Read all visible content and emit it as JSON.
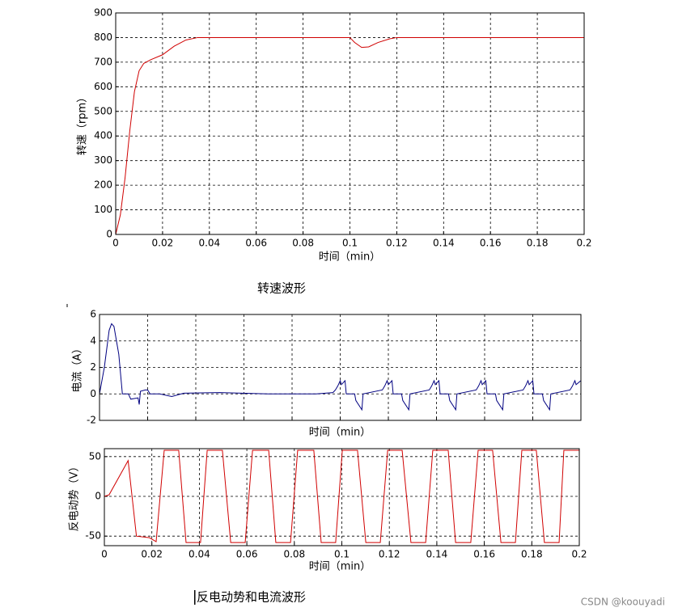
{
  "chart_data": [
    {
      "type": "line",
      "xlabel": "时间（min）",
      "ylabel": "转速（rpm）",
      "color": "#d00000",
      "grid": true,
      "xtick_labels": true,
      "xlim": [
        0,
        0.2
      ],
      "ylim": [
        0,
        900
      ],
      "xticks": [
        0,
        0.02,
        0.04,
        0.06,
        0.08,
        0.1,
        0.12,
        0.14,
        0.16,
        0.18,
        0.2
      ],
      "yticks": [
        0,
        100,
        200,
        300,
        400,
        500,
        600,
        700,
        800,
        900
      ],
      "x": [
        0,
        0.002,
        0.004,
        0.006,
        0.008,
        0.01,
        0.012,
        0.015,
        0.02,
        0.025,
        0.03,
        0.035,
        0.04,
        0.1,
        0.102,
        0.105,
        0.108,
        0.112,
        0.117,
        0.12,
        0.2
      ],
      "values": [
        0,
        80,
        230,
        420,
        580,
        665,
        695,
        710,
        730,
        765,
        790,
        800,
        800,
        800,
        780,
        760,
        762,
        780,
        795,
        800,
        800
      ]
    },
    {
      "type": "line",
      "xlabel": "时间（min）",
      "ylabel": "电流（A）",
      "color": "#000080",
      "grid": true,
      "xtick_labels": false,
      "xlim": [
        0,
        0.2
      ],
      "ylim": [
        -2,
        6
      ],
      "xticks": [
        0,
        0.02,
        0.04,
        0.06,
        0.08,
        0.1,
        0.12,
        0.14,
        0.16,
        0.18,
        0.2
      ],
      "yticks": [
        -2,
        0,
        2,
        4,
        6
      ],
      "x": [
        0,
        0.002,
        0.004,
        0.005,
        0.006,
        0.008,
        0.0095,
        0.012,
        0.013,
        0.016,
        0.0165,
        0.017,
        0.019,
        0.02,
        0.021,
        0.025,
        0.03,
        0.035,
        0.05,
        0.07,
        0.09,
        0.097,
        0.098,
        0.099,
        0.1,
        0.1005,
        0.102,
        0.1025,
        0.106,
        0.1065,
        0.109,
        0.1095,
        0.1175,
        0.1185,
        0.1195,
        0.12,
        0.1215,
        0.122,
        0.1255,
        0.126,
        0.1285,
        0.129,
        0.137,
        0.138,
        0.139,
        0.1395,
        0.141,
        0.1415,
        0.145,
        0.1455,
        0.148,
        0.1485,
        0.1565,
        0.1575,
        0.1585,
        0.159,
        0.1605,
        0.161,
        0.1645,
        0.165,
        0.1675,
        0.168,
        0.176,
        0.177,
        0.178,
        0.1785,
        0.18,
        0.1805,
        0.184,
        0.1845,
        0.187,
        0.1875,
        0.1955,
        0.1965,
        0.1975,
        0.198,
        0.2
      ],
      "values": [
        0,
        2,
        4.8,
        5.3,
        5.1,
        3,
        0,
        0,
        -0.4,
        -0.3,
        -0.8,
        0.2,
        0.3,
        0.3,
        0,
        0,
        -0.2,
        0.05,
        0.1,
        0,
        0,
        0.1,
        0.3,
        0.6,
        1.0,
        0.7,
        1.0,
        0,
        0,
        -0.5,
        -1.2,
        0,
        0.3,
        0.6,
        1.0,
        0.7,
        1.0,
        0,
        0,
        -0.5,
        -1.2,
        0,
        0.3,
        0.6,
        1.0,
        0.7,
        1.0,
        0,
        0,
        -0.5,
        -1.2,
        0,
        0.3,
        0.6,
        1.0,
        0.7,
        1.0,
        0,
        0,
        -0.5,
        -1.2,
        0,
        0.3,
        0.6,
        1.0,
        0.7,
        1.0,
        0,
        0,
        -0.5,
        -1.2,
        0,
        0.3,
        0.6,
        1.0,
        0.7,
        1.0
      ]
    },
    {
      "type": "line",
      "xlabel": "时间（min）",
      "ylabel": "反电动势（V）",
      "color": "#d00000",
      "grid": true,
      "xtick_labels": true,
      "xlim": [
        0,
        0.2
      ],
      "ylim": [
        -62,
        60
      ],
      "xticks": [
        0,
        0.02,
        0.04,
        0.06,
        0.08,
        0.1,
        0.12,
        0.14,
        0.16,
        0.18,
        0.2
      ],
      "yticks": [
        -50,
        0,
        50
      ],
      "x": [
        0,
        0.002,
        0.01,
        0.0135,
        0.019,
        0.0218,
        0.0252,
        0.0313,
        0.0344,
        0.0405,
        0.0433,
        0.0497,
        0.0532,
        0.0593,
        0.0624,
        0.0692,
        0.0722,
        0.0784,
        0.0814,
        0.0882,
        0.0913,
        0.0974,
        0.1002,
        0.1066,
        0.1101,
        0.1162,
        0.1193,
        0.1254,
        0.1291,
        0.1353,
        0.1383,
        0.1448,
        0.1479,
        0.1543,
        0.1574,
        0.1635,
        0.167,
        0.1731,
        0.1758,
        0.1819,
        0.1853,
        0.1915,
        0.1935,
        0.2
      ],
      "values": [
        0,
        2,
        45,
        -50,
        -52,
        -57,
        58,
        58,
        -58,
        -58,
        58,
        58,
        -58,
        -58,
        58,
        58,
        -58,
        -58,
        58,
        58,
        -58,
        -58,
        58,
        58,
        -58,
        -58,
        58,
        58,
        -58,
        -58,
        58,
        58,
        -58,
        -58,
        58,
        58,
        -58,
        -58,
        58,
        58,
        -58,
        -58,
        58,
        58
      ]
    }
  ],
  "captions": [
    "转速波形",
    "反电动势和电流波形"
  ],
  "watermark": "CSDN @koouyadi"
}
